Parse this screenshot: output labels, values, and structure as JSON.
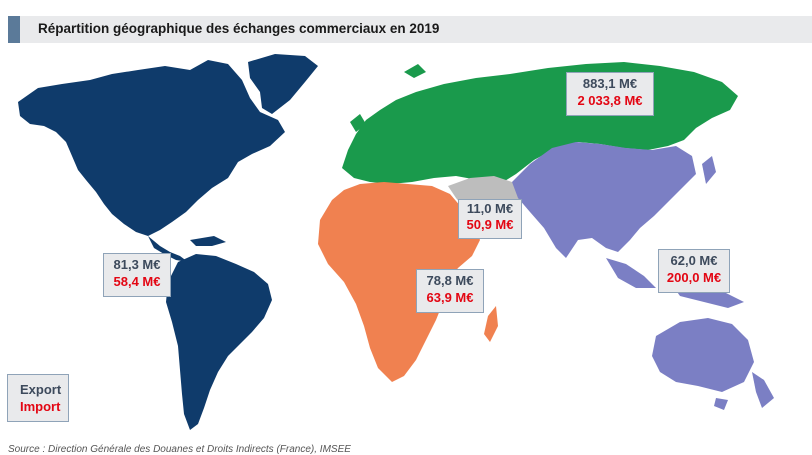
{
  "title": "Répartition géographique des échanges commerciaux en 2019",
  "regions": [
    {
      "name": "Amériques",
      "color": "#0f3b6b",
      "export": "81,3 M€",
      "import": "58,4 M€"
    },
    {
      "name": "Europe-Asie du Nord",
      "color": "#1a9a4c",
      "export": "883,1 M€",
      "import": "2 033,8 M€"
    },
    {
      "name": "Moyen-Orient",
      "color": "#bdbdbd",
      "export": "11,0 M€",
      "import": "50,9 M€"
    },
    {
      "name": "Afrique",
      "color": "#f08150",
      "export": "78,8 M€",
      "import": "63,9 M€"
    },
    {
      "name": "Asie-Océanie",
      "color": "#7b7fc4",
      "export": "62,0 M€",
      "import": "200,0 M€"
    }
  ],
  "legend": {
    "export": "Export",
    "import": "Import",
    "export_color": "#3d4a5c",
    "import_color": "#e30613"
  },
  "source": "Source : Direction Générale des Douanes et Droits Indirects (France), IMSEE"
}
